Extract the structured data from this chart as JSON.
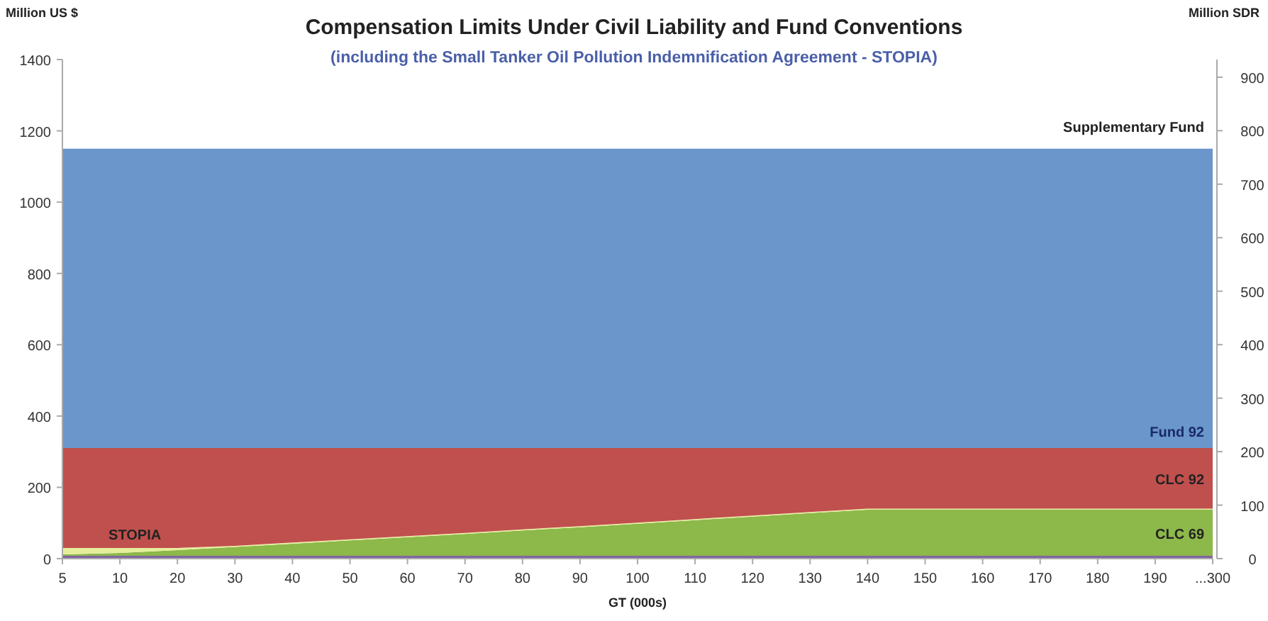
{
  "chart_data": {
    "type": "area",
    "stacked": true,
    "title": "Compensation Limits Under Civil Liability and Fund Conventions",
    "subtitle": "(including the Small Tanker Oil Pollution Indemnification Agreement - STOPIA)",
    "xlabel": "GT (000s)",
    "ylabel": "Million US $",
    "y2label": "Million SDR",
    "categories": [
      "5",
      "10",
      "20",
      "30",
      "40",
      "50",
      "60",
      "70",
      "80",
      "90",
      "100",
      "110",
      "120",
      "130",
      "140",
      "150",
      "160",
      "170",
      "180",
      "190",
      "...300"
    ],
    "series": [
      {
        "color": "#8064a2",
        "values": [
          8,
          8,
          8,
          8,
          8,
          8,
          8,
          8,
          8,
          8,
          8,
          8,
          8,
          8,
          8,
          8,
          8,
          8,
          8,
          8,
          8
        ]
      },
      {
        "name": "CLC 69",
        "color": "#8db84a",
        "values": [
          4,
          8,
          16,
          25,
          34,
          43,
          52,
          61,
          71,
          80,
          90,
          100,
          110,
          120,
          129,
          129,
          129,
          129,
          129,
          129,
          129
        ]
      },
      {
        "name": "STOPIA",
        "color": "#e6ee9c",
        "values": [
          18,
          14,
          6,
          3,
          3,
          3,
          3,
          3,
          3,
          3,
          3,
          3,
          3,
          3,
          3,
          3,
          3,
          3,
          3,
          3,
          3
        ]
      },
      {
        "name": "CLC 92",
        "color": "#c0504d",
        "values": [
          280,
          280,
          280,
          274,
          265,
          256,
          247,
          238,
          228,
          219,
          209,
          199,
          189,
          179,
          170,
          170,
          170,
          170,
          170,
          170,
          170
        ]
      },
      {
        "name": "Supplementary Fund",
        "color": "#6a96cb",
        "values": [
          840,
          840,
          840,
          840,
          840,
          840,
          840,
          840,
          840,
          840,
          840,
          840,
          840,
          840,
          840,
          840,
          840,
          840,
          840,
          840,
          840
        ]
      }
    ],
    "annotations": [
      {
        "text": "Fund 92",
        "x": "...300",
        "y": 310
      }
    ],
    "ylim": [
      0,
      1400
    ],
    "yticks": [
      0,
      200,
      400,
      600,
      800,
      1000,
      1200,
      1400
    ],
    "y2lim": [
      0,
      933
    ],
    "y2ticks": [
      0,
      100,
      200,
      300,
      400,
      500,
      600,
      700,
      800,
      900
    ],
    "grid": false
  }
}
